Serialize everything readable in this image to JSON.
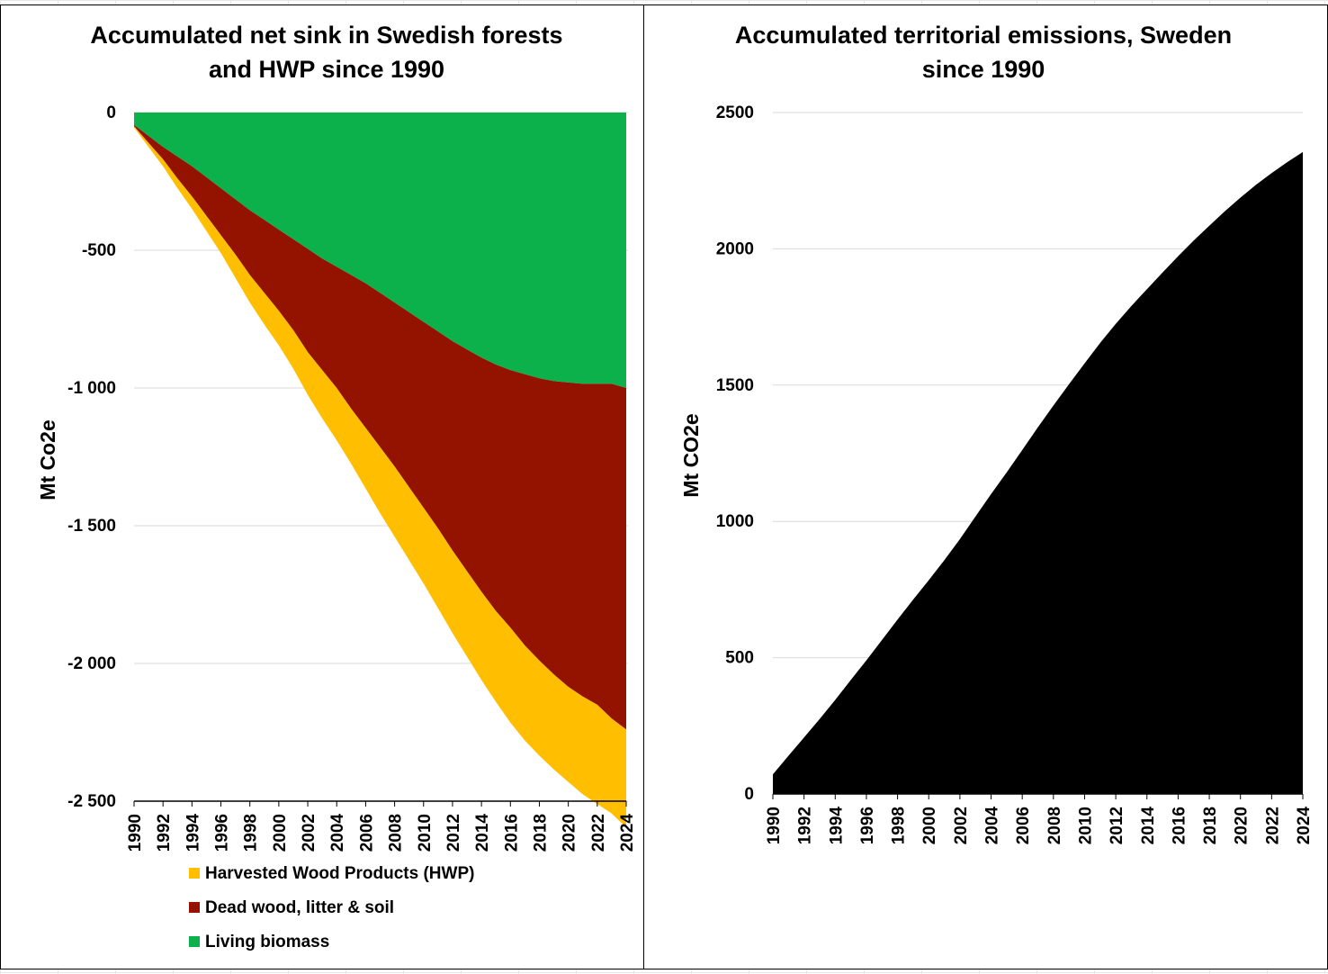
{
  "chart_data": [
    {
      "type": "area",
      "stacked": true,
      "title_lines": [
        "Accumulated net sink in Swedish forests",
        "and HWP since 1990"
      ],
      "xlabel": "",
      "ylabel": "Mt Co2e",
      "x": [
        1990,
        1991,
        1992,
        1993,
        1994,
        1995,
        1996,
        1997,
        1998,
        1999,
        2000,
        2001,
        2002,
        2003,
        2004,
        2005,
        2006,
        2007,
        2008,
        2009,
        2010,
        2011,
        2012,
        2013,
        2014,
        2015,
        2016,
        2017,
        2018,
        2019,
        2020,
        2021,
        2022,
        2023,
        2024
      ],
      "x_tick_labels": [
        "1990",
        "1992",
        "1994",
        "1996",
        "1998",
        "2000",
        "2002",
        "2004",
        "2006",
        "2008",
        "2010",
        "2012",
        "2014",
        "2016",
        "2018",
        "2020",
        "2022",
        "2024"
      ],
      "ylim": [
        -2500,
        0
      ],
      "y_tick_values": [
        0,
        -500,
        -1000,
        -1500,
        -2000,
        -2500
      ],
      "y_tick_labels": [
        "0",
        "-500",
        "-1 000",
        "-1 500",
        "-2 000",
        "-2 500"
      ],
      "series": [
        {
          "name": "Living biomass",
          "color": "#0cb14b",
          "upper": [
            0,
            0,
            0,
            0,
            0,
            0,
            0,
            0,
            0,
            0,
            0,
            0,
            0,
            0,
            0,
            0,
            0,
            0,
            0,
            0,
            0,
            0,
            0,
            0,
            0,
            0,
            0,
            0,
            0,
            0,
            0,
            0,
            0,
            0,
            0
          ],
          "lower": [
            -45,
            -85,
            -125,
            -160,
            -195,
            -235,
            -275,
            -315,
            -355,
            -390,
            -425,
            -460,
            -495,
            -530,
            -560,
            -590,
            -620,
            -655,
            -690,
            -725,
            -760,
            -795,
            -830,
            -860,
            -890,
            -915,
            -935,
            -950,
            -965,
            -975,
            -980,
            -985,
            -985,
            -985,
            -1000
          ]
        },
        {
          "name": "Dead wood, litter & soil",
          "color": "#931200",
          "upper": [
            -45,
            -85,
            -125,
            -160,
            -195,
            -235,
            -275,
            -315,
            -355,
            -390,
            -425,
            -460,
            -495,
            -530,
            -560,
            -590,
            -620,
            -655,
            -690,
            -725,
            -760,
            -795,
            -830,
            -860,
            -890,
            -915,
            -935,
            -950,
            -965,
            -975,
            -980,
            -985,
            -985,
            -985,
            -1000
          ],
          "lower": [
            -50,
            -110,
            -170,
            -240,
            -305,
            -375,
            -445,
            -515,
            -590,
            -655,
            -720,
            -790,
            -870,
            -935,
            -1000,
            -1075,
            -1145,
            -1215,
            -1285,
            -1360,
            -1435,
            -1510,
            -1590,
            -1665,
            -1740,
            -1810,
            -1870,
            -1935,
            -1990,
            -2040,
            -2085,
            -2120,
            -2150,
            -2200,
            -2240
          ]
        },
        {
          "name": "Harvested Wood Products (HWP)",
          "color": "#ffbe00",
          "upper": [
            -50,
            -110,
            -170,
            -240,
            -305,
            -375,
            -445,
            -515,
            -590,
            -655,
            -720,
            -790,
            -870,
            -935,
            -1000,
            -1075,
            -1145,
            -1215,
            -1285,
            -1360,
            -1435,
            -1510,
            -1590,
            -1665,
            -1740,
            -1810,
            -1870,
            -1935,
            -1990,
            -2040,
            -2085,
            -2120,
            -2150,
            -2200,
            -2240
          ],
          "lower": [
            -55,
            -125,
            -195,
            -275,
            -350,
            -430,
            -510,
            -600,
            -690,
            -770,
            -845,
            -930,
            -1025,
            -1110,
            -1190,
            -1275,
            -1365,
            -1455,
            -1540,
            -1625,
            -1710,
            -1800,
            -1890,
            -1975,
            -2060,
            -2140,
            -2215,
            -2280,
            -2335,
            -2385,
            -2430,
            -2475,
            -2510,
            -2545,
            -2595
          ]
        }
      ],
      "legend": [
        {
          "label": "Harvested Wood Products (HWP)",
          "color": "#ffbe00"
        },
        {
          "label": "Dead wood, litter & soil",
          "color": "#931200"
        },
        {
          "label": "Living biomass",
          "color": "#0cb14b"
        }
      ],
      "legend_position": "bottom"
    },
    {
      "type": "area",
      "title_lines": [
        "Accumulated territorial emissions, Sweden",
        "since 1990"
      ],
      "xlabel": "",
      "ylabel": "Mt CO2e",
      "color": "#000000",
      "x": [
        1990,
        1991,
        1992,
        1993,
        1994,
        1995,
        1996,
        1997,
        1998,
        1999,
        2000,
        2001,
        2002,
        2003,
        2004,
        2005,
        2006,
        2007,
        2008,
        2009,
        2010,
        2011,
        2012,
        2013,
        2014,
        2015,
        2016,
        2017,
        2018,
        2019,
        2020,
        2021,
        2022,
        2023,
        2024
      ],
      "values": [
        72,
        140,
        207,
        275,
        345,
        418,
        490,
        565,
        640,
        713,
        784,
        858,
        935,
        1018,
        1100,
        1180,
        1262,
        1345,
        1425,
        1503,
        1580,
        1655,
        1725,
        1790,
        1852,
        1913,
        1973,
        2030,
        2085,
        2138,
        2188,
        2235,
        2278,
        2318,
        2355
      ],
      "x_tick_labels": [
        "1990",
        "1992",
        "1994",
        "1996",
        "1998",
        "2000",
        "2002",
        "2004",
        "2006",
        "2008",
        "2010",
        "2012",
        "2014",
        "2016",
        "2018",
        "2020",
        "2022",
        "2024"
      ],
      "ylim": [
        0,
        2500
      ],
      "y_tick_values": [
        0,
        500,
        1000,
        1500,
        2000,
        2500
      ],
      "y_tick_labels": [
        "0",
        "500",
        "1000",
        "1500",
        "2000",
        "2500"
      ]
    }
  ]
}
